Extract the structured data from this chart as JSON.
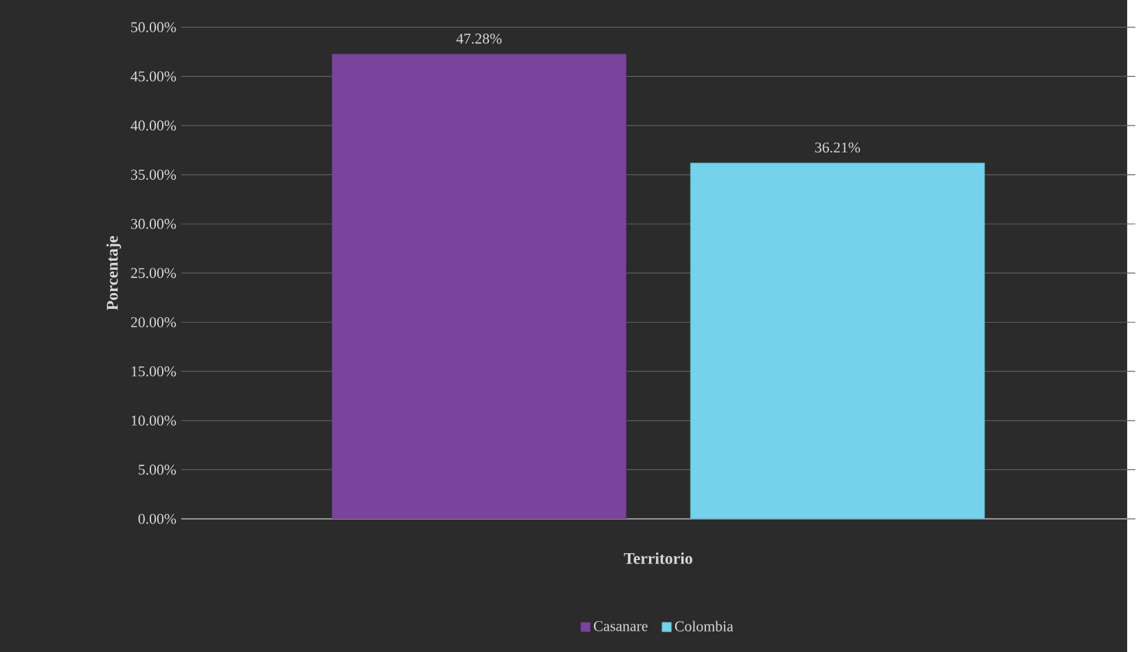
{
  "chart_data": {
    "type": "bar",
    "categories": [
      null
    ],
    "xlabel": "Territorio",
    "ylabel": "Porcentaje",
    "series": [
      {
        "name": "Casanare",
        "color": "#7a449c",
        "values": [
          47.28
        ],
        "value_labels": [
          "47.28%"
        ]
      },
      {
        "name": "Colombia",
        "color": "#74d2ea",
        "values": [
          36.21
        ],
        "value_labels": [
          "36.21%"
        ]
      }
    ],
    "ylim": [
      0,
      50
    ],
    "yticks": [
      {
        "value": 0,
        "label": "0.00%"
      },
      {
        "value": 5,
        "label": "5.00%"
      },
      {
        "value": 10,
        "label": "10.00%"
      },
      {
        "value": 15,
        "label": "15.00%"
      },
      {
        "value": 20,
        "label": "20.00%"
      },
      {
        "value": 25,
        "label": "25.00%"
      },
      {
        "value": 30,
        "label": "30.00%"
      },
      {
        "value": 35,
        "label": "35.00%"
      },
      {
        "value": 40,
        "label": "40.00%"
      },
      {
        "value": 45,
        "label": "45.00%"
      },
      {
        "value": 50,
        "label": "50.00%"
      }
    ],
    "grid": "y",
    "legend": "bottom"
  }
}
